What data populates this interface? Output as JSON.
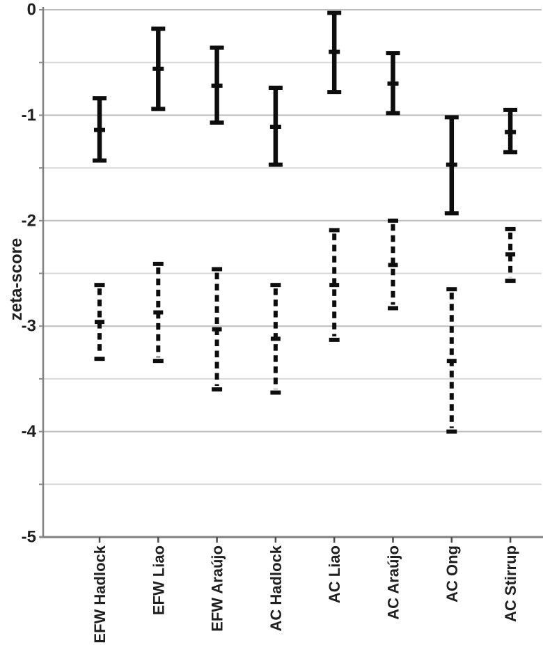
{
  "chart_data": {
    "type": "scatter",
    "mark": "error-interval",
    "title": "",
    "xlabel": "",
    "ylabel": "zeta-score",
    "ylim": [
      -5,
      0
    ],
    "yticks": [
      0,
      -1,
      -2,
      -3,
      -4,
      -5
    ],
    "ytick_labels": [
      "0",
      "-1",
      "-2",
      "-3",
      "-4",
      "-5"
    ],
    "minor_grid_step": 0.5,
    "grid": true,
    "legend": "none",
    "categories": [
      "EFW Hadlock",
      "EFW Liao",
      "EFW Araújo",
      "AC Hadlock",
      "AC Liao",
      "AC Araújo",
      "AC Ong",
      "AC Stirrup"
    ],
    "series": [
      {
        "name": "solid",
        "line_style": "solid",
        "points": [
          {
            "category": "EFW Hadlock",
            "upper": -0.84,
            "mean": -1.14,
            "lower": -1.43
          },
          {
            "category": "EFW Liao",
            "upper": -0.18,
            "mean": -0.56,
            "lower": -0.94
          },
          {
            "category": "EFW Araújo",
            "upper": -0.36,
            "mean": -0.72,
            "lower": -1.07
          },
          {
            "category": "AC Hadlock",
            "upper": -0.74,
            "mean": -1.11,
            "lower": -1.47
          },
          {
            "category": "AC Liao",
            "upper": -0.03,
            "mean": -0.4,
            "lower": -0.78
          },
          {
            "category": "AC Araújo",
            "upper": -0.41,
            "mean": -0.7,
            "lower": -0.98
          },
          {
            "category": "AC Ong",
            "upper": -1.02,
            "mean": -1.47,
            "lower": -1.93
          },
          {
            "category": "AC Stirrup",
            "upper": -0.95,
            "mean": -1.16,
            "lower": -1.35
          }
        ]
      },
      {
        "name": "dashed",
        "line_style": "dashed",
        "points": [
          {
            "category": "EFW Hadlock",
            "upper": -2.61,
            "mean": -2.96,
            "lower": -3.31
          },
          {
            "category": "EFW Liao",
            "upper": -2.41,
            "mean": -2.87,
            "lower": -3.33
          },
          {
            "category": "EFW Araújo",
            "upper": -2.46,
            "mean": -3.03,
            "lower": -3.6
          },
          {
            "category": "AC Hadlock",
            "upper": -2.61,
            "mean": -3.12,
            "lower": -3.63
          },
          {
            "category": "AC Liao",
            "upper": -2.09,
            "mean": -2.61,
            "lower": -3.13
          },
          {
            "category": "AC Araújo",
            "upper": -2.0,
            "mean": -2.42,
            "lower": -2.83
          },
          {
            "category": "AC Ong",
            "upper": -2.65,
            "mean": -3.33,
            "lower": -4.0
          },
          {
            "category": "AC Stirrup",
            "upper": -2.08,
            "mean": -2.32,
            "lower": -2.57
          }
        ]
      }
    ],
    "colors": {
      "bar": "#0d0d0d",
      "axis": "#808080",
      "grid_major": "#bdbdbd",
      "grid_minor": "#d9d9d9",
      "tick": "#8c8c8c",
      "x_tick": "#4d4d4d",
      "text": "#1f1f1f",
      "background": "#ffffff"
    }
  }
}
